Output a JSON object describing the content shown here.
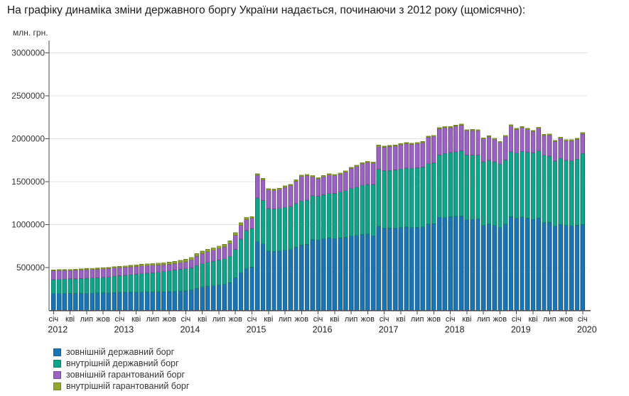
{
  "page": {
    "title": "На графіку динаміка зміни державного боргу України надається, починаючи з 2012 року (щомісячно):"
  },
  "chart_data": {
    "type": "bar",
    "stacked": true,
    "unit_label": "млн. грн.",
    "ylabel": "млн. грн.",
    "ylim": [
      0,
      3250000
    ],
    "yticks": [
      500000,
      1000000,
      1500000,
      2000000,
      2500000,
      3000000
    ],
    "grid": true,
    "legend_position": "bottom-left",
    "x_start": "січ 2012",
    "x_end": "січ 2020",
    "months_total": 97,
    "quarter_tick_labels": [
      "січ",
      "кві",
      "лип",
      "жов"
    ],
    "years": [
      "2012",
      "2013",
      "2014",
      "2015",
      "2016",
      "2017",
      "2018",
      "2019",
      "2020"
    ],
    "series": [
      {
        "name": "зовнішній державний борг",
        "color": "#1a75b5",
        "values": [
          196000,
          196000,
          197000,
          198000,
          198000,
          199000,
          200000,
          201000,
          202000,
          203000,
          205000,
          209000,
          210000,
          211000,
          212000,
          212000,
          213000,
          214000,
          215000,
          216000,
          217000,
          218000,
          220000,
          223000,
          226000,
          235000,
          255000,
          270000,
          280000,
          288000,
          296000,
          304000,
          322000,
          380000,
          440000,
          486000,
          505000,
          800000,
          775000,
          690000,
          688000,
          692000,
          700000,
          708000,
          735000,
          760000,
          768000,
          826000,
          820000,
          832000,
          842000,
          836000,
          842000,
          850000,
          866000,
          874000,
          884000,
          888000,
          870000,
          980000,
          960000,
          958000,
          960000,
          964000,
          970000,
          965000,
          968000,
          972000,
          1005000,
          1008000,
          1085000,
          1080000,
          1090000,
          1094000,
          1100000,
          1056000,
          1060000,
          1064000,
          990000,
          1005000,
          990000,
          965000,
          1005000,
          1090000,
          1072000,
          1086000,
          1074000,
          1060000,
          1076000,
          1020000,
          1026000,
          982000,
          1002000,
          988000,
          985000,
          992000,
          1000000
        ]
      },
      {
        "name": "внутрішній державний борг",
        "color": "#10a489",
        "values": [
          164000,
          166000,
          168000,
          169000,
          171000,
          173000,
          175000,
          177000,
          179000,
          181000,
          184000,
          190000,
          194000,
          199000,
          204000,
          209000,
          214000,
          219000,
          224000,
          229000,
          235000,
          242000,
          250000,
          257000,
          259000,
          262000,
          267000,
          273000,
          280000,
          286000,
          292000,
          298000,
          308000,
          330000,
          390000,
          445000,
          450000,
          510000,
          505000,
          495000,
          494000,
          496000,
          500000,
          504000,
          510000,
          515000,
          518000,
          508000,
          510000,
          515000,
          520000,
          528000,
          536000,
          544000,
          554000,
          562000,
          572000,
          580000,
          598000,
          665000,
          668000,
          672000,
          676000,
          682000,
          686000,
          690000,
          694000,
          698000,
          704000,
          712000,
          725000,
          748000,
          750000,
          754000,
          760000,
          754000,
          750000,
          746000,
          742000,
          744000,
          742000,
          740000,
          746000,
          758000,
          760000,
          764000,
          770000,
          776000,
          782000,
          788000,
          772000,
          758000,
          768000,
          760000,
          756000,
          771000,
          828000
        ]
      },
      {
        "name": "зовнішній гарантований борг",
        "color": "#9a62c3",
        "values": [
          104000,
          103000,
          102000,
          101000,
          101000,
          100000,
          100000,
          99000,
          99000,
          98000,
          98000,
          95000,
          96000,
          95000,
          93000,
          92000,
          91000,
          90000,
          88000,
          85000,
          81000,
          77000,
          76000,
          76000,
          81000,
          92000,
          111000,
          118000,
          123000,
          127000,
          133000,
          137000,
          151000,
          166000,
          162000,
          126000,
          119000,
          265000,
          241000,
          218000,
          215000,
          219000,
          235000,
          241000,
          260000,
          285000,
          284000,
          222000,
          204000,
          209000,
          214000,
          207000,
          210000,
          218000,
          232000,
          240000,
          250000,
          256000,
          248000,
          262000,
          272000,
          279000,
          277000,
          283000,
          285000,
          278000,
          281000,
          285000,
          308000,
          307000,
          305000,
          300000,
          288000,
          296000,
          298000,
          284000,
          286000,
          284000,
          266000,
          272000,
          262000,
          252000,
          276000,
          298000,
          276000,
          278000,
          262000,
          246000,
          264000,
          228000,
          244000,
          226000,
          236000,
          228000,
          234000,
          228000,
          227000
        ]
      },
      {
        "name": "внутрішній гарантований борг",
        "color": "#92a733",
        "values": [
          8000,
          9000,
          9000,
          10000,
          11000,
          12000,
          12000,
          12000,
          12000,
          13000,
          13000,
          14000,
          13000,
          14000,
          15000,
          17000,
          18000,
          19000,
          21000,
          22000,
          23000,
          24000,
          25000,
          27000,
          29000,
          29000,
          29000,
          29000,
          29000,
          29000,
          29000,
          29000,
          29000,
          29000,
          28000,
          28000,
          16000,
          15000,
          15000,
          15000,
          15000,
          15000,
          15000,
          15000,
          15000,
          15000,
          15000,
          16000,
          14000,
          14000,
          14000,
          14000,
          14000,
          14000,
          14000,
          14000,
          14000,
          14000,
          14000,
          18000,
          13000,
          13000,
          13000,
          13000,
          13000,
          13000,
          13000,
          13000,
          13000,
          13000,
          13000,
          14000,
          12000,
          12000,
          12000,
          12000,
          12000,
          12000,
          12000,
          12000,
          12000,
          12000,
          12000,
          14000,
          13000,
          13000,
          13000,
          13000,
          13000,
          13000,
          13000,
          13000,
          13000,
          13000,
          14000,
          14000,
          15000
        ]
      }
    ]
  }
}
